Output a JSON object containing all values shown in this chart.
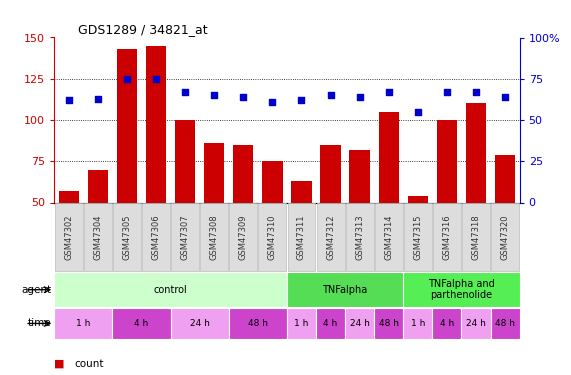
{
  "title": "GDS1289 / 34821_at",
  "categories": [
    "GSM47302",
    "GSM47304",
    "GSM47305",
    "GSM47306",
    "GSM47307",
    "GSM47308",
    "GSM47309",
    "GSM47310",
    "GSM47311",
    "GSM47312",
    "GSM47313",
    "GSM47314",
    "GSM47315",
    "GSM47316",
    "GSM47318",
    "GSM47320"
  ],
  "bar_values": [
    57,
    70,
    143,
    145,
    100,
    86,
    85,
    75,
    63,
    85,
    82,
    105,
    54,
    100,
    110,
    79
  ],
  "dot_pct": [
    62,
    63,
    75,
    75,
    67,
    65,
    64,
    61,
    62,
    65,
    64,
    67,
    55,
    67,
    67,
    64
  ],
  "bar_color": "#cc0000",
  "dot_color": "#0000cc",
  "ylim_left": [
    50,
    150
  ],
  "ylim_right": [
    0,
    100
  ],
  "yticks_left": [
    50,
    75,
    100,
    125,
    150
  ],
  "yticks_right": [
    0,
    25,
    50,
    75,
    100
  ],
  "ytick_right_labels": [
    "0",
    "25",
    "50",
    "75",
    "100%"
  ],
  "agent_groups": [
    {
      "label": "control",
      "start": 0,
      "end": 8,
      "color": "#ccffcc"
    },
    {
      "label": "TNFalpha",
      "start": 8,
      "end": 12,
      "color": "#55dd55"
    },
    {
      "label": "TNFalpha and\nparthenolide",
      "start": 12,
      "end": 16,
      "color": "#55ee55"
    }
  ],
  "time_groups": [
    {
      "label": "1 h",
      "start": 0,
      "end": 2,
      "color": "#f0a0f0"
    },
    {
      "label": "4 h",
      "start": 2,
      "end": 4,
      "color": "#cc44cc"
    },
    {
      "label": "24 h",
      "start": 4,
      "end": 6,
      "color": "#f0a0f0"
    },
    {
      "label": "48 h",
      "start": 6,
      "end": 8,
      "color": "#cc44cc"
    },
    {
      "label": "1 h",
      "start": 8,
      "end": 9,
      "color": "#f0a0f0"
    },
    {
      "label": "4 h",
      "start": 9,
      "end": 10,
      "color": "#cc44cc"
    },
    {
      "label": "24 h",
      "start": 10,
      "end": 11,
      "color": "#f0a0f0"
    },
    {
      "label": "48 h",
      "start": 11,
      "end": 12,
      "color": "#cc44cc"
    },
    {
      "label": "1 h",
      "start": 12,
      "end": 13,
      "color": "#f0a0f0"
    },
    {
      "label": "4 h",
      "start": 13,
      "end": 14,
      "color": "#cc44cc"
    },
    {
      "label": "24 h",
      "start": 14,
      "end": 15,
      "color": "#f0a0f0"
    },
    {
      "label": "48 h",
      "start": 15,
      "end": 16,
      "color": "#cc44cc"
    }
  ],
  "legend_count_color": "#cc0000",
  "legend_pct_color": "#0000cc",
  "axis_left_color": "#cc0000",
  "axis_right_color": "#0000cc",
  "xtick_bg": "#dddddd",
  "xtick_border": "#bbbbbb"
}
